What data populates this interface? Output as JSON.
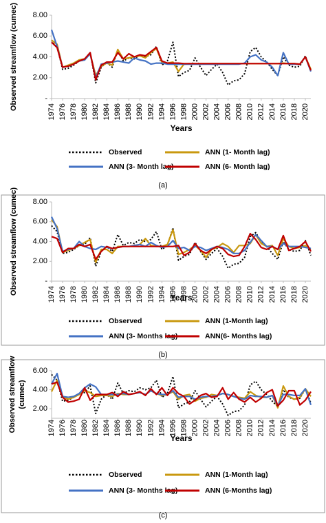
{
  "chart_data": [
    {
      "type": "line",
      "caption": "(a)",
      "x_label": "Years",
      "y_label": "Observed streamflow (cumec)",
      "x": [
        1974,
        1975,
        1976,
        1977,
        1978,
        1979,
        1980,
        1981,
        1982,
        1983,
        1984,
        1985,
        1986,
        1987,
        1988,
        1989,
        1990,
        1991,
        1992,
        1993,
        1994,
        1995,
        1996,
        1997,
        1998,
        1999,
        2000,
        2001,
        2002,
        2003,
        2004,
        2005,
        2006,
        2007,
        2008,
        2009,
        2010,
        2011,
        2012,
        2013,
        2014,
        2015,
        2016,
        2017,
        2018,
        2019,
        2020,
        2021
      ],
      "xlim": [
        1974,
        2021
      ],
      "xticks": [
        1974,
        1976,
        1978,
        1980,
        1982,
        1984,
        1986,
        1988,
        1990,
        1992,
        1994,
        1996,
        1998,
        2000,
        2002,
        2004,
        2006,
        2008,
        2010,
        2012,
        2014,
        2016,
        2018,
        2020
      ],
      "ylim": [
        0,
        8
      ],
      "yticks": [
        {
          "value": 0,
          "label": "-"
        },
        {
          "value": 2,
          "label": "2.00"
        },
        {
          "value": 4,
          "label": "4.00"
        },
        {
          "value": 6,
          "label": "6.00"
        },
        {
          "value": 8,
          "label": "8.00"
        }
      ],
      "series": [
        {
          "name": "Observed",
          "color": "#000000",
          "dashed": true,
          "values": [
            5.6,
            5.0,
            2.8,
            2.9,
            3.2,
            3.6,
            3.7,
            4.4,
            1.5,
            3.0,
            3.5,
            3.0,
            4.7,
            3.6,
            3.9,
            3.8,
            4.2,
            4.0,
            4.2,
            5.0,
            3.2,
            3.6,
            5.4,
            2.1,
            2.5,
            2.7,
            3.9,
            3.0,
            2.2,
            2.8,
            3.3,
            2.5,
            1.3,
            1.7,
            1.8,
            2.4,
            4.5,
            4.9,
            4.0,
            3.5,
            2.8,
            2.2,
            4.0,
            3.2,
            3.0,
            3.1,
            4.1,
            2.6
          ]
        },
        {
          "name": "ANN (1- Month lag)",
          "color": "#c9980f",
          "values": [
            5.6,
            5.2,
            3.0,
            3.2,
            3.4,
            3.7,
            3.8,
            4.3,
            2.2,
            3.1,
            3.4,
            3.2,
            4.7,
            3.8,
            3.9,
            4.0,
            4.1,
            3.9,
            4.4,
            4.8,
            3.5,
            3.4,
            3.5,
            2.6,
            3.3,
            3.35,
            3.35,
            3.35,
            3.35,
            3.35,
            3.35,
            3.35,
            3.35,
            3.35,
            3.35,
            3.35,
            3.35,
            3.35,
            3.35,
            3.35,
            3.35,
            3.35,
            3.4,
            3.35,
            3.35,
            3.3,
            4.0,
            2.8
          ]
        },
        {
          "name": "ANN (3- Month lag)",
          "color": "#4472c4",
          "values": [
            6.6,
            5.0,
            3.0,
            3.1,
            3.3,
            3.6,
            3.7,
            4.3,
            2.0,
            3.3,
            3.4,
            3.5,
            3.6,
            3.5,
            3.4,
            3.9,
            3.7,
            3.6,
            3.3,
            3.4,
            3.4,
            3.3,
            3.3,
            3.3,
            3.3,
            3.3,
            3.3,
            3.3,
            3.3,
            3.3,
            3.3,
            3.3,
            3.3,
            3.3,
            3.3,
            3.4,
            4.0,
            4.2,
            3.7,
            3.5,
            3.0,
            2.2,
            4.4,
            3.3,
            3.3,
            3.3,
            4.0,
            2.6
          ]
        },
        {
          "name": "ANN (6- Month lag)",
          "color": "#c00000",
          "values": [
            5.4,
            4.9,
            3.0,
            3.1,
            3.3,
            3.6,
            3.8,
            4.4,
            1.8,
            3.2,
            3.5,
            3.5,
            4.4,
            3.8,
            4.3,
            4.0,
            4.2,
            4.1,
            4.5,
            4.9,
            3.6,
            3.4,
            3.4,
            3.4,
            3.35,
            3.35,
            3.35,
            3.35,
            3.35,
            3.35,
            3.35,
            3.35,
            3.35,
            3.35,
            3.35,
            3.35,
            3.35,
            3.35,
            3.35,
            3.35,
            3.35,
            3.35,
            3.35,
            3.35,
            3.35,
            3.3,
            4.0,
            2.7
          ]
        }
      ]
    },
    {
      "type": "line",
      "caption": "(b)",
      "x_label": "Years",
      "y_label": "Observed streamflow (cumec)",
      "x": [
        1974,
        1975,
        1976,
        1977,
        1978,
        1979,
        1980,
        1981,
        1982,
        1983,
        1984,
        1985,
        1986,
        1987,
        1988,
        1989,
        1990,
        1991,
        1992,
        1993,
        1994,
        1995,
        1996,
        1997,
        1998,
        1999,
        2000,
        2001,
        2002,
        2003,
        2004,
        2005,
        2006,
        2007,
        2008,
        2009,
        2010,
        2011,
        2012,
        2013,
        2014,
        2015,
        2016,
        2017,
        2018,
        2019,
        2020,
        2021
      ],
      "xlim": [
        1974,
        2021
      ],
      "xticks": [
        1974,
        1976,
        1978,
        1980,
        1982,
        1984,
        1986,
        1988,
        1990,
        1992,
        1994,
        1996,
        1998,
        2000,
        2002,
        2004,
        2006,
        2008,
        2010,
        2012,
        2014,
        2016,
        2018,
        2020
      ],
      "ylim": [
        0,
        8
      ],
      "yticks": [
        {
          "value": 0,
          "label": "-"
        },
        {
          "value": 2,
          "label": "2.00"
        },
        {
          "value": 4,
          "label": "4.00"
        },
        {
          "value": 6,
          "label": "6.00"
        },
        {
          "value": 8,
          "label": "8.00"
        }
      ],
      "series": [
        {
          "name": "Observed",
          "color": "#000000",
          "dashed": true,
          "values": [
            5.6,
            5.0,
            2.8,
            2.9,
            3.2,
            3.6,
            3.7,
            4.4,
            1.5,
            3.0,
            3.5,
            3.0,
            4.7,
            3.6,
            3.9,
            3.8,
            4.2,
            4.0,
            4.2,
            5.0,
            3.2,
            3.6,
            5.4,
            2.1,
            2.5,
            2.7,
            3.9,
            3.0,
            2.2,
            2.8,
            3.3,
            2.5,
            1.3,
            1.7,
            1.8,
            2.4,
            4.5,
            4.9,
            4.0,
            3.5,
            2.8,
            2.2,
            4.0,
            3.2,
            3.0,
            3.1,
            4.1,
            2.6
          ]
        },
        {
          "name": "ANN (1-Month lag)",
          "color": "#c9980f",
          "values": [
            6.2,
            5.5,
            2.9,
            3.1,
            3.3,
            3.6,
            3.9,
            4.2,
            1.9,
            3.2,
            3.2,
            2.8,
            3.5,
            3.5,
            3.5,
            3.6,
            3.7,
            4.3,
            3.6,
            3.5,
            3.5,
            3.7,
            5.2,
            2.7,
            2.9,
            3.2,
            3.6,
            3.1,
            2.4,
            3.2,
            3.4,
            3.8,
            3.5,
            2.9,
            3.6,
            3.6,
            3.8,
            4.7,
            3.8,
            3.5,
            3.6,
            2.6,
            4.3,
            3.5,
            3.3,
            3.4,
            3.6,
            3.2
          ]
        },
        {
          "name": "ANN (3- Months lag)",
          "color": "#4472c4",
          "values": [
            6.5,
            5.3,
            3.0,
            3.2,
            3.3,
            4.0,
            3.5,
            3.3,
            3.2,
            3.5,
            3.4,
            3.3,
            3.4,
            3.5,
            3.5,
            3.6,
            3.7,
            3.5,
            3.9,
            3.6,
            3.4,
            3.5,
            4.1,
            3.3,
            3.4,
            3.1,
            3.5,
            3.4,
            3.1,
            3.3,
            3.5,
            3.4,
            3.2,
            2.8,
            2.8,
            3.1,
            3.9,
            4.7,
            4.1,
            3.5,
            3.5,
            3.2,
            3.8,
            3.5,
            3.5,
            3.5,
            3.4,
            3.3
          ]
        },
        {
          "name": "ANN(6- Months lag)",
          "color": "#c00000",
          "values": [
            4.5,
            4.3,
            2.9,
            3.3,
            3.3,
            3.7,
            3.5,
            3.7,
            2.2,
            3.0,
            3.5,
            3.3,
            3.4,
            3.5,
            3.5,
            3.5,
            3.5,
            3.5,
            3.5,
            3.5,
            3.5,
            3.5,
            3.5,
            3.6,
            2.6,
            2.9,
            3.8,
            3.1,
            2.8,
            3.2,
            3.5,
            3.3,
            2.7,
            2.5,
            2.6,
            3.5,
            4.8,
            4.2,
            3.4,
            3.2,
            3.5,
            3.2,
            4.6,
            3.1,
            3.3,
            3.5,
            4.0,
            3.0
          ]
        }
      ]
    },
    {
      "type": "line",
      "caption": "(c)",
      "x_label": "Years",
      "y_label": [
        "Observed streamflow",
        "(cumec)"
      ],
      "x": [
        1974,
        1975,
        1976,
        1977,
        1978,
        1979,
        1980,
        1981,
        1982,
        1983,
        1984,
        1985,
        1986,
        1987,
        1988,
        1989,
        1990,
        1991,
        1992,
        1993,
        1994,
        1995,
        1996,
        1997,
        1998,
        1999,
        2000,
        2001,
        2002,
        2003,
        2004,
        2005,
        2006,
        2007,
        2008,
        2009,
        2010,
        2011,
        2012,
        2013,
        2014,
        2015,
        2016,
        2017,
        2018,
        2019,
        2020,
        2021
      ],
      "xlim": [
        1974,
        2021
      ],
      "xticks": [
        1974,
        1976,
        1978,
        1980,
        1982,
        1984,
        1986,
        1988,
        1990,
        1992,
        1994,
        1996,
        1998,
        2000,
        2002,
        2004,
        2006,
        2008,
        2010,
        2012,
        2014,
        2016,
        2018,
        2020
      ],
      "ylim": [
        1,
        6
      ],
      "yticks": [
        {
          "value": 2,
          "label": "2.00"
        },
        {
          "value": 4,
          "label": "4.00"
        },
        {
          "value": 6,
          "label": "6.00"
        }
      ],
      "series": [
        {
          "name": "Observed",
          "color": "#000000",
          "dashed": true,
          "values": [
            5.6,
            5.0,
            2.8,
            2.9,
            3.2,
            3.6,
            3.7,
            4.4,
            1.5,
            3.0,
            3.5,
            3.0,
            4.7,
            3.6,
            3.9,
            3.8,
            4.2,
            4.0,
            4.2,
            5.0,
            3.2,
            3.6,
            5.4,
            2.1,
            2.5,
            2.7,
            3.9,
            3.0,
            2.2,
            2.8,
            3.3,
            2.5,
            1.3,
            1.7,
            1.8,
            2.4,
            4.5,
            4.9,
            4.0,
            3.5,
            2.8,
            2.2,
            4.0,
            3.2,
            3.0,
            3.1,
            4.1,
            2.6
          ]
        },
        {
          "name": "ANN (1-Month lag)",
          "color": "#c9980f",
          "values": [
            3.8,
            5.0,
            3.3,
            3.0,
            3.2,
            3.5,
            3.9,
            3.7,
            3.3,
            3.4,
            3.4,
            3.3,
            3.6,
            3.5,
            3.5,
            3.6,
            3.7,
            3.5,
            3.9,
            3.6,
            3.4,
            3.5,
            3.8,
            3.0,
            3.4,
            3.5,
            2.8,
            3.1,
            3.2,
            3.5,
            3.4,
            3.6,
            3.5,
            3.3,
            3.2,
            3.1,
            3.8,
            3.4,
            3.2,
            3.2,
            3.4,
            2.1,
            4.4,
            3.3,
            3.0,
            3.2,
            4.1,
            3.3
          ]
        },
        {
          "name": "ANN (3- Months lag)",
          "color": "#4472c4",
          "values": [
            4.6,
            5.7,
            3.3,
            3.2,
            3.3,
            3.6,
            4.2,
            4.6,
            4.3,
            3.5,
            3.5,
            3.5,
            3.5,
            3.6,
            3.5,
            3.6,
            3.7,
            3.5,
            3.9,
            3.6,
            3.5,
            3.5,
            3.9,
            3.2,
            3.3,
            3.3,
            3.0,
            3.2,
            3.3,
            3.3,
            3.4,
            3.6,
            3.5,
            3.3,
            3.1,
            3.0,
            3.4,
            3.3,
            3.3,
            3.2,
            3.4,
            2.3,
            3.5,
            3.5,
            3.4,
            3.4,
            4.1,
            2.4
          ]
        },
        {
          "name": "ANN (6-Months lag)",
          "color": "#c00000",
          "values": [
            4.6,
            4.8,
            3.2,
            2.7,
            2.8,
            3.0,
            4.2,
            2.9,
            3.5,
            3.5,
            3.5,
            3.7,
            3.3,
            3.8,
            3.5,
            3.6,
            3.8,
            3.4,
            4.1,
            3.5,
            4.2,
            3.4,
            4.2,
            3.6,
            3.3,
            2.5,
            2.9,
            3.4,
            3.6,
            3.2,
            3.3,
            4.2,
            3.0,
            3.7,
            3.0,
            2.7,
            3.2,
            2.7,
            3.1,
            3.7,
            4.0,
            2.3,
            2.9,
            3.9,
            3.9,
            2.4,
            2.9,
            3.8
          ]
        }
      ]
    }
  ]
}
